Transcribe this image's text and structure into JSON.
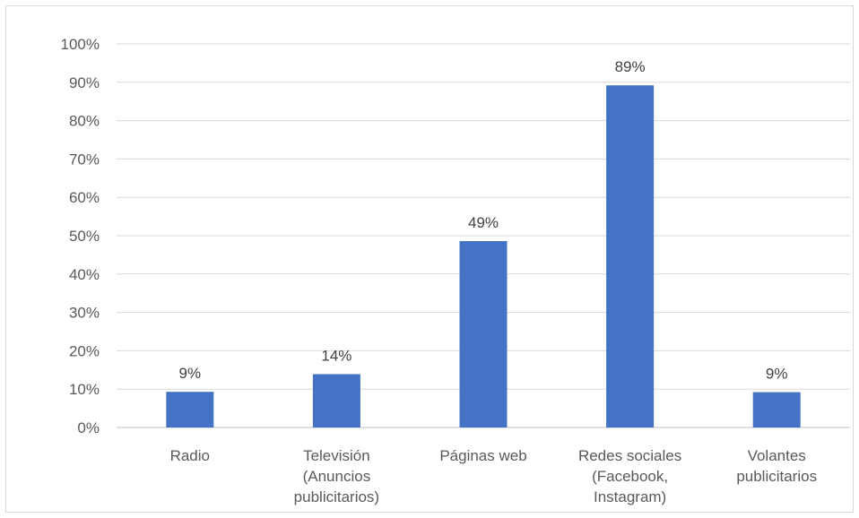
{
  "chart_data": {
    "type": "bar",
    "categories": [
      [
        "Radio"
      ],
      [
        "Televisión",
        "(Anuncios",
        "publicitarios)"
      ],
      [
        "Páginas web"
      ],
      [
        "Redes sociales",
        "(Facebook,",
        "Instagram)"
      ],
      [
        "Volantes",
        "publicitarios"
      ]
    ],
    "values": [
      9.3,
      13.9,
      48.6,
      89.2,
      9.2
    ],
    "data_labels": [
      "9%",
      "14%",
      "49%",
      "89%",
      "9%"
    ],
    "y_ticks": [
      "0%",
      "10%",
      "20%",
      "30%",
      "40%",
      "50%",
      "60%",
      "70%",
      "80%",
      "90%",
      "100%"
    ],
    "ylim": [
      0,
      100
    ],
    "bar_color": "#4472c4",
    "grid": true,
    "legend": "none"
  }
}
